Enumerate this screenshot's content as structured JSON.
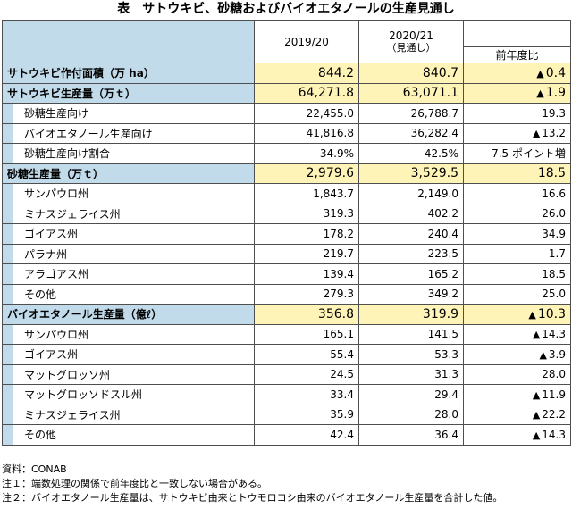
{
  "title": "表　サトウキビ、砂糖およびバイオエタノールの生産見通し",
  "header": {
    "year1": "2019/20",
    "year2": "2020/21",
    "year2_sub": "（見通し）",
    "change": "前年度比"
  },
  "rows": [
    {
      "label": "サトウキビ作付面積（万 ha）",
      "v1": "844.2",
      "v2": "840.7",
      "neg": true,
      "change": "0.4",
      "major": true
    },
    {
      "label": "サトウキビ生産量（万ｔ）",
      "v1": "64,271.8",
      "v2": "63,071.1",
      "neg": true,
      "change": "1.9",
      "major": true
    },
    {
      "label": "砂糖生産向け",
      "v1": "22,455.0",
      "v2": "26,788.7",
      "neg": false,
      "change": "19.3"
    },
    {
      "label": "バイオエタノール生産向け",
      "v1": "41,816.8",
      "v2": "36,282.4",
      "neg": true,
      "change": "13.2"
    },
    {
      "label": "砂糖生産向け割合",
      "v1": "34.9%",
      "v2": "42.5%",
      "neg": false,
      "change": "7.5 ポイント増"
    },
    {
      "label": "砂糖生産量（万ｔ）",
      "v1": "2,979.6",
      "v2": "3,529.5",
      "neg": false,
      "change": "18.5",
      "major": true
    },
    {
      "label": "サンパウロ州",
      "v1": "1,843.7",
      "v2": "2,149.0",
      "neg": false,
      "change": "16.6"
    },
    {
      "label": "ミナスジェライス州",
      "v1": "319.3",
      "v2": "402.2",
      "neg": false,
      "change": "26.0"
    },
    {
      "label": "ゴイアス州",
      "v1": "178.2",
      "v2": "240.4",
      "neg": false,
      "change": "34.9"
    },
    {
      "label": "パラナ州",
      "v1": "219.7",
      "v2": "223.5",
      "neg": false,
      "change": "1.7"
    },
    {
      "label": "アラゴアス州",
      "v1": "139.4",
      "v2": "165.2",
      "neg": false,
      "change": "18.5"
    },
    {
      "label": "その他",
      "v1": "279.3",
      "v2": "349.2",
      "neg": false,
      "change": "25.0"
    },
    {
      "label": "バイオエタノール生産量（億ℓ）",
      "v1": "356.8",
      "v2": "319.9",
      "neg": true,
      "change": "10.3",
      "major": true
    },
    {
      "label": "サンパウロ州",
      "v1": "165.1",
      "v2": "141.5",
      "neg": true,
      "change": "14.3"
    },
    {
      "label": "ゴイアス州",
      "v1": "55.4",
      "v2": "53.3",
      "neg": true,
      "change": "3.9"
    },
    {
      "label": "マットグロッソ州",
      "v1": "24.5",
      "v2": "31.3",
      "neg": false,
      "change": "28.0"
    },
    {
      "label": "マットグロッソドスル州",
      "v1": "33.4",
      "v2": "29.4",
      "neg": true,
      "change": "11.9"
    },
    {
      "label": "ミナスジェライス州",
      "v1": "35.9",
      "v2": "28.0",
      "neg": true,
      "change": "22.2"
    },
    {
      "label": "その他",
      "v1": "42.4",
      "v2": "36.4",
      "neg": true,
      "change": "14.3"
    }
  ],
  "triangle": "▲",
  "notes": [
    "資料：CONAB",
    "注１：端数処理の関係で前年度比と一致しない場合がある。",
    "注２：バイオエタノール生産量は、サトウキビ由来とトウモロコシ由来のバイオエタノール生産量を合計した値。"
  ]
}
